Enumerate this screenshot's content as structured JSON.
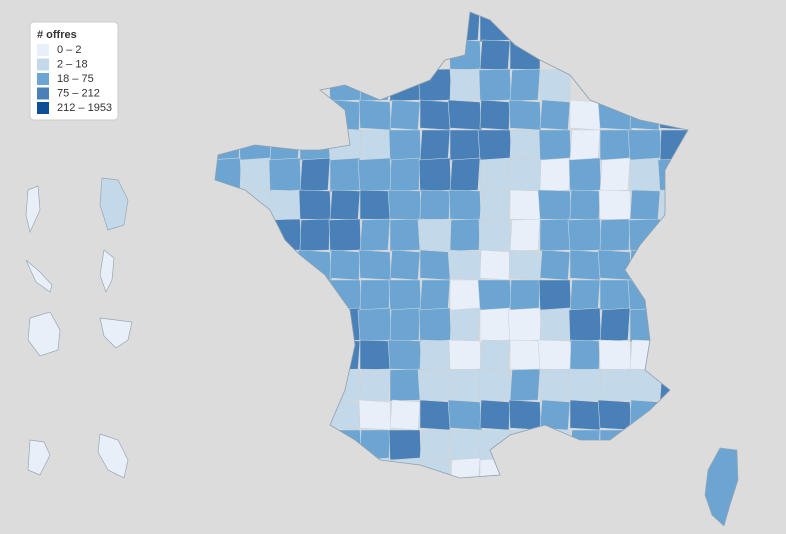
{
  "legend": {
    "title": "# offres",
    "items": [
      {
        "label": "0 – 2",
        "color": "#e9eff9"
      },
      {
        "label": "2 – 18",
        "color": "#c3d8e8"
      },
      {
        "label": "18 – 75",
        "color": "#6da5d2"
      },
      {
        "label": "75 – 212",
        "color": "#4a80b8"
      },
      {
        "label": "212 – 1953",
        "color": "#0d4f96"
      }
    ]
  }
}
